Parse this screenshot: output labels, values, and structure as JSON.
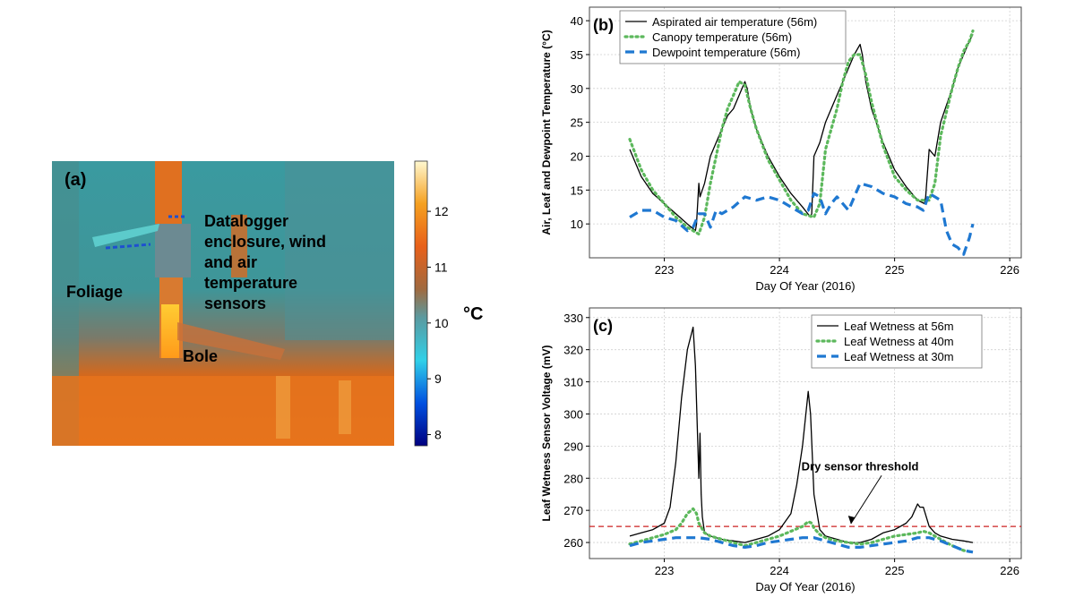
{
  "panel_a": {
    "label": "(a)",
    "annotations": {
      "datalogger": [
        "Datalogger",
        "enclosure, wind",
        "and air",
        "temperature",
        "sensors"
      ],
      "foliage": "Foliage",
      "bole": "Bole"
    },
    "colorbar": {
      "unit": "°C",
      "ticks": [
        8,
        9,
        10,
        11,
        12
      ],
      "range": [
        7.8,
        12.9
      ]
    }
  },
  "chart_data": [
    {
      "type": "line",
      "panel_label": "(b)",
      "xlabel": "Day Of Year (2016)",
      "ylabel": "Air, Leaf and Dewpoint Temperature (°C)",
      "xlim": [
        222.35,
        226.1
      ],
      "ylim": [
        5,
        42
      ],
      "xticks": [
        223,
        224,
        225,
        226
      ],
      "yticks": [
        10,
        15,
        20,
        25,
        30,
        35,
        40
      ],
      "grid": true,
      "legend": "top-left",
      "series": [
        {
          "name": "Aspirated air temperature (56m)",
          "style": "solid",
          "color": "#000000",
          "x": [
            222.7,
            222.75,
            222.8,
            222.9,
            223.0,
            223.1,
            223.2,
            223.27,
            223.28,
            223.3,
            223.31,
            223.35,
            223.4,
            223.5,
            223.55,
            223.6,
            223.65,
            223.7,
            223.72,
            223.75,
            223.8,
            223.9,
            224.0,
            224.1,
            224.2,
            224.27,
            224.28,
            224.3,
            224.35,
            224.4,
            224.5,
            224.55,
            224.6,
            224.65,
            224.7,
            224.72,
            224.75,
            224.8,
            224.9,
            225.0,
            225.1,
            225.2,
            225.26,
            225.27,
            225.3,
            225.35,
            225.4,
            225.5,
            225.55,
            225.6,
            225.65,
            225.68
          ],
          "y": [
            21,
            19,
            17,
            14.5,
            13,
            11.5,
            10,
            9,
            10,
            16,
            14,
            16,
            20,
            24,
            26,
            27,
            29,
            31,
            30,
            27,
            24,
            20,
            17,
            14.5,
            12.5,
            11,
            11.5,
            20,
            22,
            25,
            29,
            31,
            33,
            35,
            36.5,
            35,
            31,
            27,
            22,
            18,
            15.5,
            13.5,
            13,
            14,
            21,
            20,
            25,
            30,
            33,
            35,
            37,
            38
          ]
        },
        {
          "name": "Canopy temperature (56m)",
          "style": "dotted",
          "color": "#5cb85c",
          "x": [
            222.7,
            222.8,
            222.9,
            223.0,
            223.1,
            223.2,
            223.3,
            223.35,
            223.4,
            223.45,
            223.5,
            223.55,
            223.6,
            223.65,
            223.7,
            223.75,
            223.8,
            223.9,
            224.0,
            224.1,
            224.2,
            224.3,
            224.35,
            224.4,
            224.5,
            224.55,
            224.6,
            224.65,
            224.7,
            224.75,
            224.8,
            224.9,
            225.0,
            225.1,
            225.2,
            225.3,
            225.35,
            225.4,
            225.5,
            225.55,
            225.6,
            225.65,
            225.68
          ],
          "y": [
            22.5,
            18,
            15,
            13,
            11,
            9.5,
            8.5,
            11,
            16,
            20,
            24,
            27,
            29,
            31,
            30.5,
            27,
            24,
            19.5,
            16.5,
            13.5,
            11.5,
            11,
            13,
            21,
            27,
            31,
            34,
            35,
            35,
            32,
            28,
            21.5,
            17,
            15,
            13.5,
            13.5,
            16,
            23,
            30,
            33,
            35.5,
            37,
            38.5
          ]
        },
        {
          "name": "Dewpoint temperature (56m)",
          "style": "dashed",
          "color": "#1f78d1",
          "x": [
            222.7,
            222.8,
            222.9,
            223.0,
            223.1,
            223.2,
            223.25,
            223.3,
            223.35,
            223.4,
            223.45,
            223.5,
            223.55,
            223.6,
            223.7,
            223.8,
            223.9,
            224.0,
            224.1,
            224.2,
            224.25,
            224.3,
            224.35,
            224.4,
            224.45,
            224.5,
            224.55,
            224.6,
            224.7,
            224.8,
            224.9,
            225.0,
            225.1,
            225.2,
            225.25,
            225.3,
            225.35,
            225.4,
            225.45,
            225.5,
            225.55,
            225.6,
            225.65,
            225.68
          ],
          "y": [
            11,
            12,
            12,
            11,
            10.5,
            9,
            9.5,
            11.5,
            11.5,
            9.5,
            12,
            11.5,
            12,
            12.5,
            14,
            13.5,
            14,
            13.5,
            12.5,
            11.5,
            12,
            14.5,
            14,
            11.5,
            13,
            14,
            13,
            12,
            16,
            15.5,
            14.5,
            14,
            13,
            12.5,
            12,
            14.5,
            14,
            13.5,
            9,
            7,
            6.5,
            5.5,
            8,
            10
          ]
        }
      ]
    },
    {
      "type": "line",
      "panel_label": "(c)",
      "xlabel": "Day Of Year (2016)",
      "ylabel": "Leaf Wetness Sensor Voltage (mV)",
      "xlim": [
        222.35,
        226.1
      ],
      "ylim": [
        255,
        333
      ],
      "xticks": [
        223,
        224,
        225,
        226
      ],
      "yticks": [
        260,
        270,
        280,
        290,
        300,
        310,
        320,
        330
      ],
      "grid": true,
      "legend": "top-right",
      "threshold": {
        "value": 265,
        "label": "Dry sensor threshold",
        "color": "#cc2222"
      },
      "series": [
        {
          "name": "Leaf Wetness at 56m",
          "style": "solid",
          "color": "#000000",
          "x": [
            222.7,
            222.8,
            222.9,
            223.0,
            223.05,
            223.1,
            223.15,
            223.2,
            223.25,
            223.27,
            223.3,
            223.31,
            223.32,
            223.33,
            223.35,
            223.4,
            223.5,
            223.6,
            223.7,
            223.8,
            223.9,
            224.0,
            224.1,
            224.15,
            224.2,
            224.25,
            224.27,
            224.3,
            224.35,
            224.4,
            224.5,
            224.6,
            224.7,
            224.8,
            224.9,
            225.0,
            225.1,
            225.15,
            225.2,
            225.22,
            225.25,
            225.3,
            225.35,
            225.4,
            225.5,
            225.6,
            225.68
          ],
          "y": [
            262,
            263,
            264,
            266,
            271,
            285,
            305,
            320,
            327,
            315,
            280,
            294,
            275,
            268,
            263,
            262,
            261,
            260.5,
            260,
            261,
            262,
            264,
            269,
            278,
            290,
            307,
            300,
            275,
            264,
            262,
            261,
            260,
            260,
            261,
            263,
            264,
            266,
            268,
            272,
            271,
            271,
            265,
            263,
            262,
            261,
            260.5,
            260
          ]
        },
        {
          "name": "Leaf Wetness at 40m",
          "style": "dotted",
          "color": "#5cb85c",
          "x": [
            222.7,
            222.8,
            222.9,
            223.0,
            223.1,
            223.15,
            223.2,
            223.25,
            223.28,
            223.3,
            223.35,
            223.4,
            223.5,
            223.6,
            223.7,
            223.8,
            223.9,
            224.0,
            224.1,
            224.2,
            224.25,
            224.28,
            224.3,
            224.35,
            224.4,
            224.5,
            224.6,
            224.7,
            224.8,
            224.9,
            225.0,
            225.1,
            225.2,
            225.25,
            225.3,
            225.4,
            225.5,
            225.6,
            225.68
          ],
          "y": [
            259.5,
            260.5,
            261.5,
            262.5,
            264,
            266,
            269,
            270.5,
            269,
            266,
            263,
            262,
            261,
            260,
            259,
            260,
            261,
            262,
            263.5,
            265,
            266.5,
            266,
            264.5,
            262.5,
            261.5,
            260.5,
            260,
            259.5,
            260,
            261,
            262,
            262.5,
            263,
            263.5,
            263,
            261,
            259,
            257.5,
            257
          ]
        },
        {
          "name": "Leaf Wetness at 30m",
          "style": "dashed",
          "color": "#1f78d1",
          "x": [
            222.7,
            222.8,
            222.9,
            223.0,
            223.1,
            223.2,
            223.3,
            223.4,
            223.5,
            223.6,
            223.7,
            223.8,
            223.9,
            224.0,
            224.1,
            224.2,
            224.3,
            224.4,
            224.5,
            224.6,
            224.7,
            224.8,
            224.9,
            225.0,
            225.1,
            225.2,
            225.3,
            225.4,
            225.5,
            225.6,
            225.68
          ],
          "y": [
            259,
            260,
            260.5,
            261,
            261.5,
            261.5,
            261.5,
            261,
            260,
            259,
            258.5,
            259,
            260,
            260.5,
            261,
            261.5,
            261.5,
            260.5,
            259.5,
            258.5,
            258.5,
            259,
            259.5,
            260,
            260.5,
            261.5,
            261.5,
            260.5,
            259,
            257.5,
            257
          ]
        }
      ]
    }
  ]
}
